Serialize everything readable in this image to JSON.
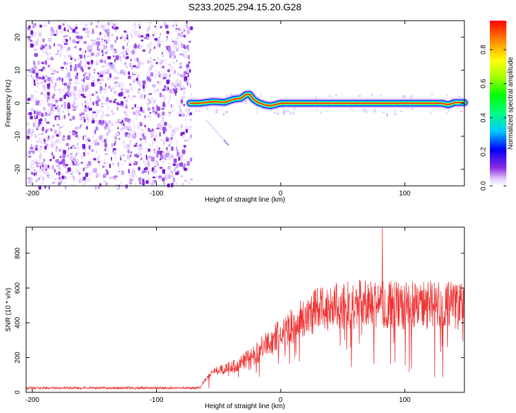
{
  "title": "S233.2025.294.15.20.G28",
  "chart_data": [
    {
      "type": "heatmap",
      "xlabel": "Height of straight line (km)",
      "ylabel": "Frequency (Hz)",
      "xlim": [
        -205,
        148
      ],
      "ylim": [
        -25,
        25
      ],
      "xticks": [
        -200,
        -100,
        0,
        100
      ],
      "yticks": [
        -20,
        -10,
        0,
        10,
        20
      ],
      "noise_region_x": [
        -205,
        -73
      ],
      "ridge": {
        "x": [
          -73,
          -65,
          -55,
          -45,
          -38,
          -32,
          -28,
          -25,
          -22,
          -18,
          -13,
          -8,
          0,
          10,
          20,
          30,
          40,
          60,
          80,
          100,
          120,
          130,
          135,
          140,
          148
        ],
        "y": [
          0,
          0,
          0.5,
          0.3,
          1.2,
          1.5,
          2.6,
          2.7,
          1.2,
          0.2,
          -0.5,
          -0.8,
          0,
          0,
          0,
          0,
          0,
          0,
          0,
          0,
          0,
          0,
          -0.5,
          0.2,
          0.2
        ]
      },
      "colorbar": {
        "label": "Normalized spectral amplitude",
        "ticks": [
          0.0,
          0.2,
          0.4,
          0.6,
          0.8
        ],
        "range": [
          0,
          0.97
        ]
      }
    },
    {
      "type": "line",
      "xlabel": "Height of straight line (km)",
      "ylabel": "SNR (10 * v/v)",
      "xlim": [
        -205,
        148
      ],
      "ylim": [
        0,
        950
      ],
      "xticks": [
        -200,
        -100,
        0,
        100
      ],
      "yticks": [
        0,
        200,
        400,
        600,
        800
      ],
      "color": "#ee3333",
      "profile": {
        "x": [
          -205,
          -65,
          -62,
          -55,
          -45,
          -35,
          -20,
          -10,
          0,
          10,
          20,
          30,
          40,
          60,
          80,
          100,
          120,
          148
        ],
        "y": [
          25,
          25,
          60,
          120,
          140,
          160,
          230,
          290,
          340,
          400,
          450,
          490,
          510,
          520,
          520,
          515,
          515,
          510
        ]
      },
      "spike": {
        "x": 82,
        "y": 945
      }
    }
  ]
}
